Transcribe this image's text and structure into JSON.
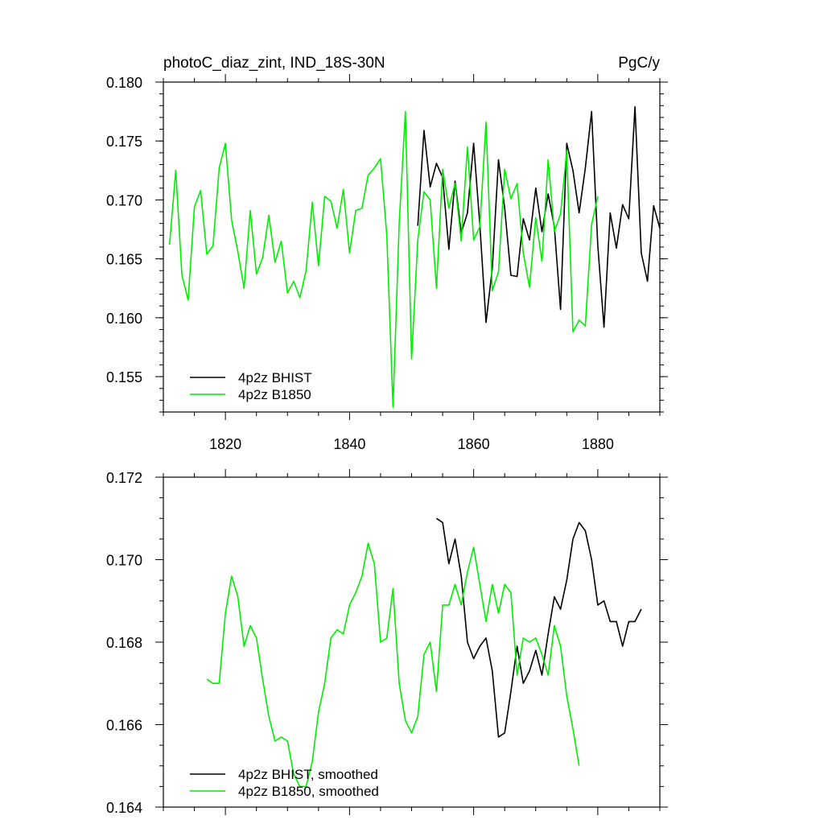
{
  "chart_data": [
    {
      "type": "line",
      "title_left": "photoC_diaz_zint, IND_18S-30N",
      "title_right": "PgC/y",
      "xlim": [
        1810,
        1890
      ],
      "ylim": [
        0.152,
        0.18
      ],
      "x_ticks": [
        1820,
        1840,
        1860,
        1880
      ],
      "x_tick_labels": [
        "1820",
        "1840",
        "1860",
        "1880"
      ],
      "y_ticks": [
        0.155,
        0.16,
        0.165,
        0.17,
        0.175,
        0.18
      ],
      "y_tick_labels": [
        "0.155",
        "0.160",
        "0.165",
        "0.170",
        "0.175",
        "0.180"
      ],
      "legend_position": "bottom-left",
      "series": [
        {
          "name": "4p2z BHIST",
          "color": "#000000",
          "x": [
            1851,
            1852,
            1853,
            1854,
            1855,
            1856,
            1857,
            1858,
            1859,
            1860,
            1861,
            1862,
            1863,
            1864,
            1865,
            1866,
            1867,
            1868,
            1869,
            1870,
            1871,
            1872,
            1873,
            1874,
            1875,
            1876,
            1877,
            1878,
            1879,
            1880,
            1881,
            1882,
            1883,
            1884,
            1885,
            1886,
            1887,
            1888,
            1889,
            1890
          ],
          "y": [
            0.1678,
            0.1759,
            0.1711,
            0.1731,
            0.1719,
            0.1658,
            0.1716,
            0.1672,
            0.1689,
            0.1748,
            0.1679,
            0.1596,
            0.1642,
            0.1734,
            0.1693,
            0.1636,
            0.1635,
            0.1684,
            0.1666,
            0.171,
            0.1673,
            0.1705,
            0.1677,
            0.1607,
            0.1748,
            0.1725,
            0.1689,
            0.1727,
            0.1775,
            0.1661,
            0.1592,
            0.1689,
            0.1659,
            0.1696,
            0.1684,
            0.1779,
            0.1655,
            0.1631,
            0.1695,
            0.1676
          ]
        },
        {
          "name": "4p2z B1850",
          "color": "#00ee00",
          "x": [
            1811,
            1812,
            1813,
            1814,
            1815,
            1816,
            1817,
            1818,
            1819,
            1820,
            1821,
            1822,
            1823,
            1824,
            1825,
            1826,
            1827,
            1828,
            1829,
            1830,
            1831,
            1832,
            1833,
            1834,
            1835,
            1836,
            1837,
            1838,
            1839,
            1840,
            1841,
            1842,
            1843,
            1844,
            1845,
            1846,
            1847,
            1848,
            1849,
            1850,
            1851,
            1852,
            1853,
            1854,
            1855,
            1856,
            1857,
            1858,
            1859,
            1860,
            1861,
            1862,
            1863,
            1864,
            1865,
            1866,
            1867,
            1868,
            1869,
            1870,
            1871,
            1872,
            1873,
            1874,
            1875,
            1876,
            1877,
            1878,
            1879,
            1880
          ],
          "y": [
            0.1662,
            0.1725,
            0.1636,
            0.1615,
            0.1694,
            0.1708,
            0.1654,
            0.1661,
            0.1727,
            0.1748,
            0.1683,
            0.1656,
            0.1625,
            0.1691,
            0.1637,
            0.1651,
            0.1687,
            0.1647,
            0.1665,
            0.1621,
            0.1631,
            0.1617,
            0.164,
            0.1698,
            0.1644,
            0.1703,
            0.1699,
            0.1676,
            0.1709,
            0.1655,
            0.1691,
            0.1693,
            0.1721,
            0.1727,
            0.1735,
            0.167,
            0.1524,
            0.168,
            0.1775,
            0.1565,
            0.1666,
            0.1707,
            0.17,
            0.1625,
            0.1726,
            0.1693,
            0.1714,
            0.1665,
            0.1745,
            0.1666,
            0.1677,
            0.1766,
            0.1623,
            0.1639,
            0.1726,
            0.1701,
            0.1714,
            0.1655,
            0.1626,
            0.1685,
            0.1648,
            0.1734,
            0.1673,
            0.1688,
            0.1742,
            0.1588,
            0.1598,
            0.1593,
            0.1679,
            0.1703
          ]
        }
      ]
    },
    {
      "type": "line",
      "xlim": [
        1810,
        1890
      ],
      "ylim": [
        0.164,
        0.172
      ],
      "x_ticks": [
        1820,
        1840,
        1860,
        1880
      ],
      "y_ticks": [
        0.164,
        0.166,
        0.168,
        0.17,
        0.172
      ],
      "y_tick_labels": [
        "0.164",
        "0.166",
        "0.168",
        "0.170",
        "0.172"
      ],
      "legend_position": "bottom-left",
      "series": [
        {
          "name": "4p2z BHIST, smoothed",
          "color": "#000000",
          "x": [
            1854,
            1855,
            1856,
            1857,
            1858,
            1859,
            1860,
            1861,
            1862,
            1863,
            1864,
            1865,
            1866,
            1867,
            1868,
            1869,
            1870,
            1871,
            1872,
            1873,
            1874,
            1875,
            1876,
            1877,
            1878,
            1879,
            1880,
            1881,
            1882,
            1883,
            1884,
            1885,
            1886,
            1887
          ],
          "y": [
            0.171,
            0.1709,
            0.1699,
            0.1705,
            0.1696,
            0.168,
            0.1676,
            0.1679,
            0.1681,
            0.1673,
            0.1657,
            0.1658,
            0.1668,
            0.1679,
            0.167,
            0.1673,
            0.1678,
            0.1672,
            0.1682,
            0.1691,
            0.1688,
            0.1695,
            0.1705,
            0.1709,
            0.1707,
            0.17,
            0.1689,
            0.169,
            0.1685,
            0.1685,
            0.1679,
            0.1685,
            0.1685,
            0.1688
          ]
        },
        {
          "name": "4p2z B1850, smoothed",
          "color": "#00ee00",
          "x": [
            1817,
            1818,
            1819,
            1820,
            1821,
            1822,
            1823,
            1824,
            1825,
            1826,
            1827,
            1828,
            1829,
            1830,
            1831,
            1832,
            1833,
            1834,
            1835,
            1836,
            1837,
            1838,
            1839,
            1840,
            1841,
            1842,
            1843,
            1844,
            1845,
            1846,
            1847,
            1848,
            1849,
            1850,
            1851,
            1852,
            1853,
            1854,
            1855,
            1856,
            1857,
            1858,
            1859,
            1860,
            1861,
            1862,
            1863,
            1864,
            1865,
            1866,
            1867,
            1868,
            1869,
            1870,
            1871,
            1872,
            1873,
            1874,
            1875,
            1876,
            1877
          ],
          "y": [
            0.1671,
            0.167,
            0.167,
            0.1687,
            0.1696,
            0.1691,
            0.1679,
            0.1684,
            0.1681,
            0.1671,
            0.1662,
            0.1656,
            0.1657,
            0.1656,
            0.1648,
            0.1645,
            0.1645,
            0.1651,
            0.1663,
            0.167,
            0.1681,
            0.1683,
            0.1682,
            0.1689,
            0.1692,
            0.1696,
            0.1704,
            0.1699,
            0.168,
            0.1681,
            0.1693,
            0.167,
            0.1661,
            0.1658,
            0.1662,
            0.1677,
            0.168,
            0.1668,
            0.1689,
            0.1689,
            0.1694,
            0.1689,
            0.1697,
            0.1703,
            0.1694,
            0.1685,
            0.1694,
            0.1687,
            0.1694,
            0.1692,
            0.1672,
            0.1681,
            0.168,
            0.1681,
            0.1677,
            0.1672,
            0.1684,
            0.1679,
            0.1667,
            0.1659,
            0.165
          ]
        }
      ]
    }
  ]
}
